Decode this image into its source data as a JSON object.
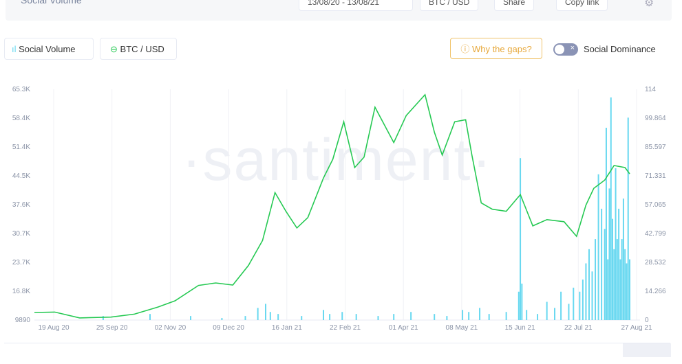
{
  "header": {
    "title": "Social Volume",
    "date_range": "13/08/20 - 13/08/21",
    "asset": "BTC / USD",
    "share": "Share",
    "copy_link": "Copy link"
  },
  "legend": {
    "social_volume": "Social Volume",
    "btc_usd": "BTC / USD"
  },
  "why_gaps": "Why the gaps?",
  "social_dominance": {
    "label": "Social Dominance",
    "enabled": false
  },
  "watermark": "·santiment·",
  "colors": {
    "price": "#26c953",
    "volume": "#68d8f0",
    "accent": "#e7a83b"
  },
  "chart_data": {
    "type": "bar+line",
    "left_ticks": [
      "65.3K",
      "58.4K",
      "51.4K",
      "44.5K",
      "37.6K",
      "30.7K",
      "23.7K",
      "16.8K",
      "9890"
    ],
    "right_ticks": [
      "114",
      "99.864",
      "85.597",
      "71.331",
      "57.065",
      "42.799",
      "28.532",
      "14.266",
      "0"
    ],
    "x_ticks": [
      "19 Aug 20",
      "25 Sep 20",
      "02 Nov 20",
      "09 Dec 20",
      "16 Jan 21",
      "22 Feb 21",
      "01 Apr 21",
      "08 May 21",
      "15 Jun 21",
      "22 Jul 21",
      "27 Aug 21"
    ],
    "ylim_left": [
      9890,
      65300
    ],
    "ylim_right": [
      0,
      114
    ],
    "series": [
      {
        "name": "BTC / USD",
        "axis": "left",
        "type": "line",
        "points": [
          [
            "2020-08-07",
            11700
          ],
          [
            "2020-08-20",
            11800
          ],
          [
            "2020-09-05",
            10400
          ],
          [
            "2020-09-25",
            10600
          ],
          [
            "2020-10-10",
            11300
          ],
          [
            "2020-10-25",
            13000
          ],
          [
            "2020-11-05",
            14500
          ],
          [
            "2020-11-20",
            18200
          ],
          [
            "2020-12-01",
            18800
          ],
          [
            "2020-12-12",
            18300
          ],
          [
            "2020-12-22",
            23000
          ],
          [
            "2020-12-31",
            29000
          ],
          [
            "2021-01-08",
            40500
          ],
          [
            "2021-01-15",
            36000
          ],
          [
            "2021-01-22",
            32000
          ],
          [
            "2021-01-29",
            34500
          ],
          [
            "2021-02-08",
            44000
          ],
          [
            "2021-02-14",
            48500
          ],
          [
            "2021-02-21",
            57500
          ],
          [
            "2021-02-28",
            46500
          ],
          [
            "2021-03-06",
            49000
          ],
          [
            "2021-03-13",
            61000
          ],
          [
            "2021-03-25",
            52500
          ],
          [
            "2021-04-02",
            59000
          ],
          [
            "2021-04-14",
            64000
          ],
          [
            "2021-04-20",
            55000
          ],
          [
            "2021-04-25",
            49500
          ],
          [
            "2021-05-03",
            57500
          ],
          [
            "2021-05-10",
            58000
          ],
          [
            "2021-05-14",
            49500
          ],
          [
            "2021-05-20",
            38000
          ],
          [
            "2021-05-27",
            36500
          ],
          [
            "2021-06-05",
            36000
          ],
          [
            "2021-06-14",
            40000
          ],
          [
            "2021-06-22",
            32500
          ],
          [
            "2021-07-01",
            34000
          ],
          [
            "2021-07-12",
            33500
          ],
          [
            "2021-07-20",
            30000
          ],
          [
            "2021-07-26",
            37500
          ],
          [
            "2021-07-31",
            41500
          ],
          [
            "2021-08-07",
            43500
          ],
          [
            "2021-08-13",
            47000
          ],
          [
            "2021-08-20",
            46500
          ],
          [
            "2021-08-23",
            45000
          ]
        ]
      },
      {
        "name": "Social Volume",
        "axis": "right",
        "type": "bar",
        "points": [
          [
            "2020-09-20",
            2
          ],
          [
            "2020-10-20",
            3
          ],
          [
            "2020-11-15",
            2
          ],
          [
            "2020-12-05",
            1
          ],
          [
            "2020-12-20",
            2
          ],
          [
            "2020-12-28",
            6
          ],
          [
            "2021-01-02",
            8
          ],
          [
            "2021-01-05",
            4
          ],
          [
            "2021-01-10",
            3
          ],
          [
            "2021-01-25",
            2
          ],
          [
            "2021-02-08",
            5
          ],
          [
            "2021-02-12",
            3
          ],
          [
            "2021-02-20",
            4
          ],
          [
            "2021-03-01",
            3
          ],
          [
            "2021-03-15",
            2
          ],
          [
            "2021-03-25",
            3
          ],
          [
            "2021-04-05",
            4
          ],
          [
            "2021-04-20",
            3
          ],
          [
            "2021-04-28",
            2
          ],
          [
            "2021-05-08",
            5
          ],
          [
            "2021-05-12",
            4
          ],
          [
            "2021-05-19",
            6
          ],
          [
            "2021-05-25",
            3
          ],
          [
            "2021-06-05",
            4
          ],
          [
            "2021-06-13",
            14
          ],
          [
            "2021-06-14",
            80
          ],
          [
            "2021-06-15",
            18
          ],
          [
            "2021-06-18",
            5
          ],
          [
            "2021-06-25",
            3
          ],
          [
            "2021-07-01",
            9
          ],
          [
            "2021-07-06",
            6
          ],
          [
            "2021-07-10",
            14
          ],
          [
            "2021-07-15",
            8
          ],
          [
            "2021-07-18",
            16
          ],
          [
            "2021-07-22",
            14
          ],
          [
            "2021-07-24",
            20
          ],
          [
            "2021-07-26",
            28
          ],
          [
            "2021-07-28",
            35
          ],
          [
            "2021-07-30",
            24
          ],
          [
            "2021-08-01",
            40
          ],
          [
            "2021-08-03",
            72
          ],
          [
            "2021-08-05",
            55
          ],
          [
            "2021-08-07",
            45
          ],
          [
            "2021-08-08",
            95
          ],
          [
            "2021-08-09",
            30
          ],
          [
            "2021-08-10",
            65
          ],
          [
            "2021-08-11",
            110
          ],
          [
            "2021-08-12",
            50
          ],
          [
            "2021-08-13",
            35
          ],
          [
            "2021-08-14",
            75
          ],
          [
            "2021-08-15",
            40
          ],
          [
            "2021-08-16",
            55
          ],
          [
            "2021-08-17",
            30
          ],
          [
            "2021-08-18",
            40
          ],
          [
            "2021-08-19",
            60
          ],
          [
            "2021-08-20",
            35
          ],
          [
            "2021-08-21",
            28
          ],
          [
            "2021-08-22",
            100
          ],
          [
            "2021-08-23",
            30
          ]
        ]
      }
    ],
    "grid": "vertical"
  }
}
